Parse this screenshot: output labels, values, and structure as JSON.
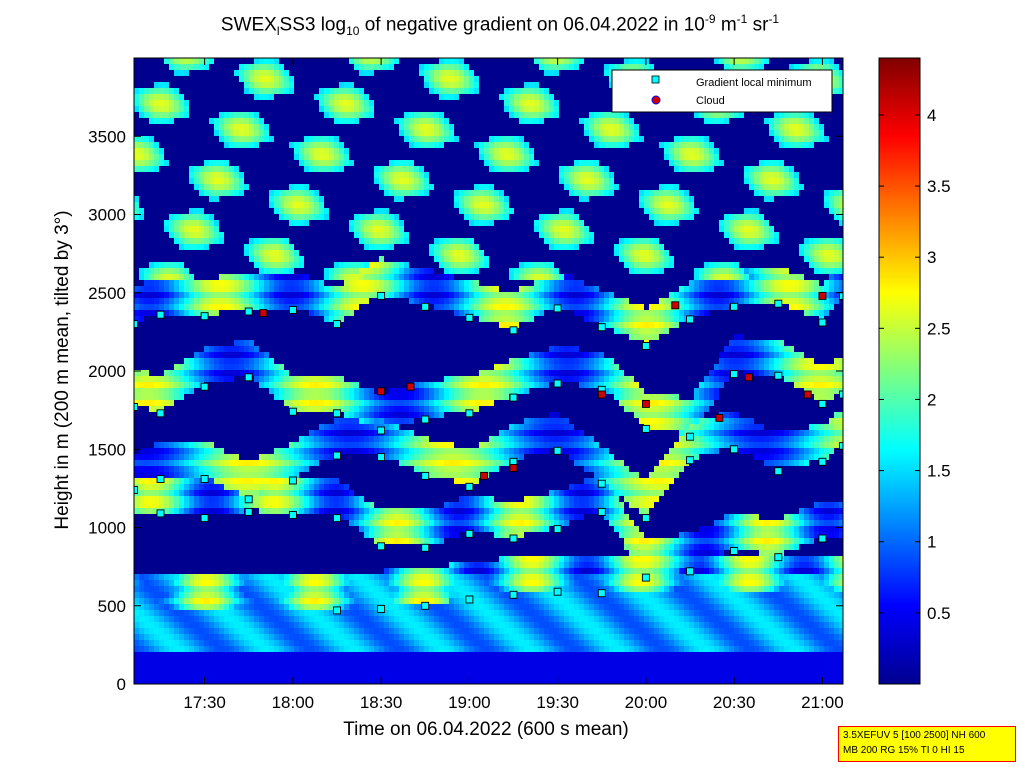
{
  "title": {
    "pre": "SWEX",
    "sub1": "l",
    "mid": "SS3 log",
    "sub2": "10",
    "post": " of negative gradient on 06.04.2022 in 10",
    "sup1": "-9",
    "unit_m": " m",
    "sup2": "-1",
    "unit_sr": " sr",
    "sup3": "-1"
  },
  "info_box": {
    "line1": "3.5XEFUV 5 [100 2500] NH 600",
    "line2": "MB 200 RG 15% TI 0 HI 15"
  },
  "colors": {
    "background_low": "#00008f",
    "colormap": "jet",
    "gradient_min_marker": "#00ffff",
    "cloud_marker": "#cc0000",
    "marker_edge": "#000000"
  },
  "chart_data": {
    "type": "heatmap",
    "title": "SWEX_l SS3 log10 of negative gradient on 06.04.2022 in 10^-9 m^-1 sr^-1",
    "xlabel": "Time on 06.04.2022 (600 s mean)",
    "ylabel": "Height in m (200 m mean, tilted by 3°)",
    "xlim": [
      "17:06",
      "21:07"
    ],
    "ylim": [
      0,
      4000
    ],
    "x_ticks": [
      "17:30",
      "18:00",
      "18:30",
      "19:00",
      "19:30",
      "20:00",
      "20:30",
      "21:00"
    ],
    "y_ticks": [
      "0",
      "500",
      "1000",
      "1500",
      "2000",
      "2500",
      "3000",
      "3500"
    ],
    "colorbar": {
      "range": [
        0,
        4.4
      ],
      "ticks": [
        "0.5",
        "1",
        "1.5",
        "2",
        "2.5",
        "3",
        "3.5",
        "4"
      ]
    },
    "legend": {
      "placement": "top-right",
      "entries": [
        "Gradient local minimum",
        "Cloud"
      ]
    },
    "series": [
      {
        "name": "Gradient local minimum",
        "layers": [
          {
            "x": [
              "17:06",
              "17:15",
              "17:30",
              "17:45",
              "18:00",
              "18:15",
              "18:30",
              "18:45",
              "19:00",
              "19:15",
              "19:30",
              "19:45",
              "20:00",
              "20:15",
              "20:30",
              "20:45",
              "21:00",
              "21:07"
            ],
            "y": [
              1240,
              1310,
              1310,
              1180,
              1300,
              1460,
              1450,
              1330,
              1260,
              1420,
              1490,
              1280,
              1060,
              1430,
              1500,
              1360,
              1420,
              1520
            ]
          },
          {
            "x": [
              "17:06",
              "17:15",
              "17:30",
              "17:45",
              "18:00",
              "18:15",
              "18:30",
              "18:45",
              "19:00",
              "19:15",
              "19:30",
              "19:45",
              "20:00",
              "20:15",
              "20:30",
              "20:45",
              "21:00",
              "21:07"
            ],
            "y": [
              1770,
              1730,
              1900,
              1960,
              1740,
              1730,
              1620,
              1690,
              1730,
              1830,
              1920,
              1880,
              1630,
              1580,
              1980,
              1970,
              1790,
              1850
            ]
          },
          {
            "x": [
              "17:06",
              "17:15",
              "17:30",
              "17:45",
              "18:00",
              "18:15",
              "18:30",
              "18:45",
              "19:00",
              "19:15",
              "19:30",
              "19:45",
              "20:00",
              "20:15",
              "20:30",
              "20:45",
              "21:00",
              "21:07"
            ],
            "y": [
              2300,
              2360,
              2350,
              2380,
              2390,
              2300,
              2480,
              2410,
              2340,
              2260,
              2400,
              2280,
              2160,
              2330,
              2410,
              2430,
              2310,
              2480
            ]
          },
          {
            "x": [
              "17:15",
              "17:30",
              "17:45",
              "18:00",
              "18:15",
              "18:30",
              "18:45",
              "19:00",
              "19:15",
              "19:30",
              "19:45",
              "20:00",
              "20:15",
              "20:30",
              "20:45",
              "21:00"
            ],
            "y": [
              1090,
              1060,
              1100,
              1080,
              1060,
              880,
              870,
              960,
              930,
              990,
              1100,
              680,
              720,
              850,
              810,
              930
            ]
          },
          {
            "x": [
              "18:15",
              "18:30",
              "18:45",
              "19:00",
              "19:15",
              "19:30",
              "19:45"
            ],
            "y": [
              470,
              480,
              500,
              540,
              570,
              590,
              580
            ]
          }
        ]
      },
      {
        "name": "Cloud",
        "layers": [
          {
            "x": [
              "17:50",
              "18:30",
              "18:40",
              "19:05",
              "19:15",
              "19:45",
              "20:00",
              "20:10",
              "20:25",
              "20:35",
              "20:55",
              "21:00"
            ],
            "y": [
              2370,
              1870,
              1900,
              1330,
              1380,
              1850,
              1790,
              2420,
              1700,
              1960,
              1850,
              2480
            ]
          }
        ]
      }
    ]
  }
}
